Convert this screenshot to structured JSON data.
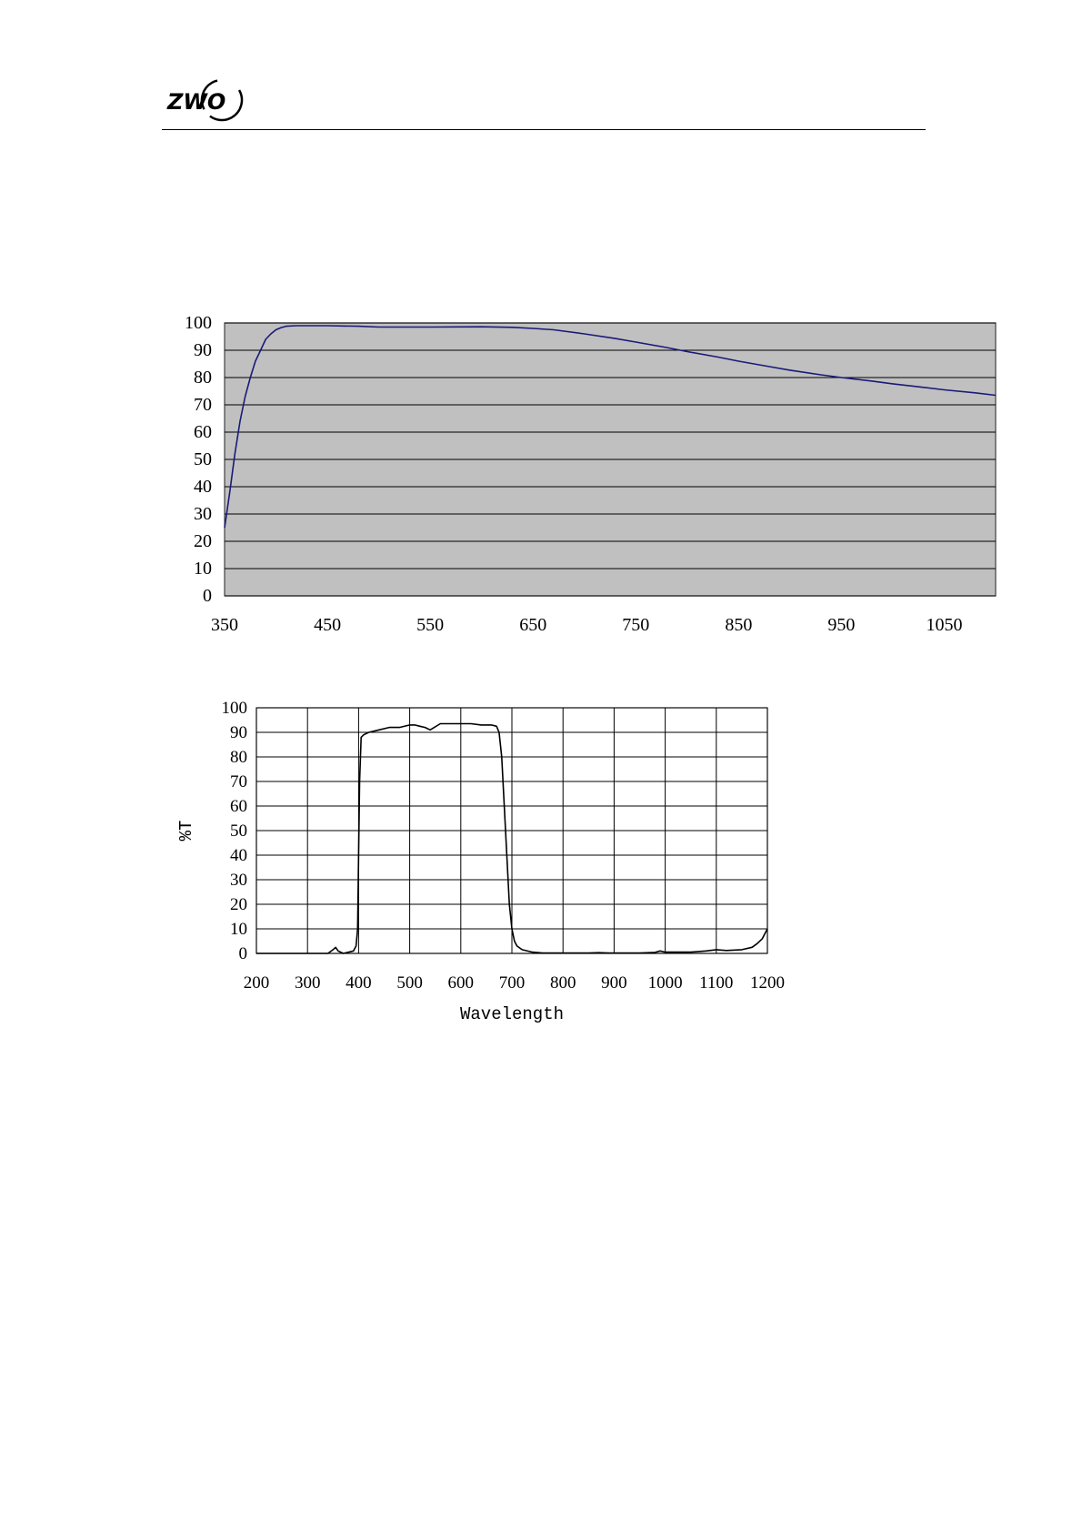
{
  "header": {
    "logo_text": "ZWO"
  },
  "chart_data": [
    {
      "type": "line",
      "title": "",
      "xlabel": "",
      "ylabel": "",
      "xlim": [
        350,
        1100
      ],
      "ylim": [
        0,
        100
      ],
      "xticks": [
        350,
        450,
        550,
        650,
        750,
        850,
        950,
        1050
      ],
      "yticks": [
        0,
        10,
        20,
        30,
        40,
        50,
        60,
        70,
        80,
        90,
        100
      ],
      "grid": "horizontal",
      "background_color": "#c0c0c0",
      "line_color": "#1a1a7a",
      "series": [
        {
          "x": [
            350,
            355,
            360,
            365,
            370,
            375,
            380,
            385,
            390,
            395,
            400,
            405,
            410,
            420,
            430,
            450,
            480,
            500,
            550,
            600,
            630,
            650,
            670,
            700,
            730,
            750,
            780,
            800,
            830,
            850,
            880,
            900,
            930,
            950,
            980,
            1000,
            1030,
            1050,
            1080,
            1100
          ],
          "y": [
            25,
            38,
            52,
            64,
            73,
            80,
            86,
            90,
            94,
            96,
            97.5,
            98.3,
            98.8,
            99,
            99,
            99,
            98.8,
            98.5,
            98.5,
            98.6,
            98.4,
            98,
            97.5,
            96,
            94.3,
            93,
            91,
            89.5,
            87.5,
            86,
            84,
            82.7,
            81,
            80,
            78.7,
            77.7,
            76.4,
            75.5,
            74.4,
            73.5
          ]
        }
      ]
    },
    {
      "type": "line",
      "title": "",
      "xlabel": "Wavelength",
      "ylabel": "%T",
      "xlim": [
        200,
        1200
      ],
      "ylim": [
        0,
        100
      ],
      "xticks": [
        200,
        300,
        400,
        500,
        600,
        700,
        800,
        900,
        1000,
        1100,
        1200
      ],
      "yticks": [
        0,
        10,
        20,
        30,
        40,
        50,
        60,
        70,
        80,
        90,
        100
      ],
      "grid": "both",
      "background_color": "#ffffff",
      "line_color": "#000000",
      "series": [
        {
          "x": [
            200,
            340,
            350,
            355,
            360,
            370,
            390,
            395,
            398,
            400,
            402,
            405,
            410,
            420,
            440,
            460,
            480,
            500,
            510,
            520,
            530,
            540,
            560,
            580,
            600,
            620,
            640,
            660,
            670,
            675,
            680,
            685,
            690,
            695,
            700,
            705,
            710,
            720,
            740,
            760,
            800,
            850,
            870,
            890,
            900,
            950,
            980,
            990,
            1000,
            1050,
            1080,
            1100,
            1120,
            1150,
            1170,
            1180,
            1190,
            1195,
            1200
          ],
          "y": [
            0,
            0,
            1.5,
            2.5,
            1,
            0,
            1,
            3,
            10,
            40,
            70,
            88,
            89,
            90,
            91,
            92,
            92,
            93,
            93,
            92.5,
            92,
            91,
            93.5,
            93.5,
            93.5,
            93.5,
            93,
            93,
            92.5,
            90,
            80,
            60,
            40,
            20,
            10,
            5,
            3,
            1.5,
            0.5,
            0.2,
            0.2,
            0.2,
            0.3,
            0.2,
            0.2,
            0.2,
            0.4,
            1,
            0.5,
            0.5,
            1,
            1.5,
            1.2,
            1.5,
            2.5,
            4,
            6,
            8,
            10
          ]
        }
      ]
    }
  ]
}
